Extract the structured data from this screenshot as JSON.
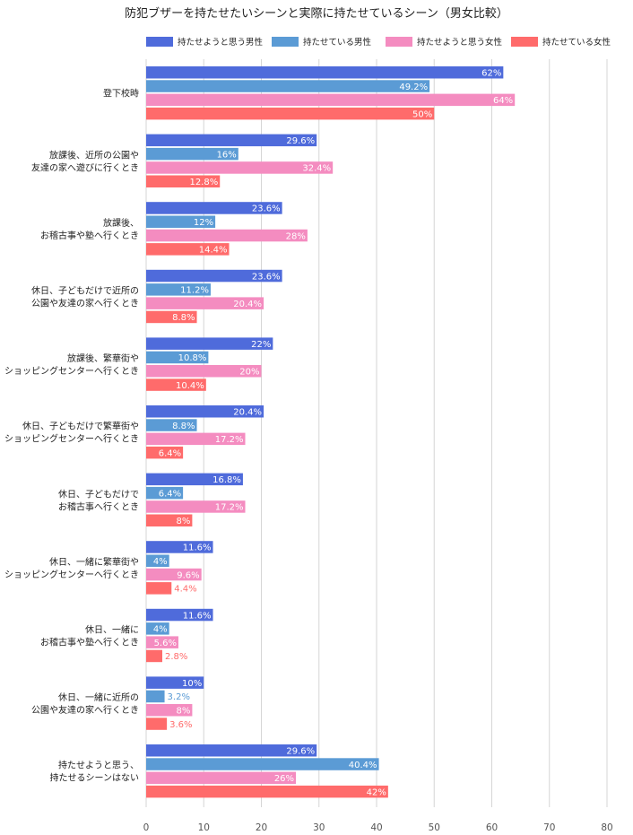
{
  "chart_data": {
    "type": "bar",
    "orientation": "horizontal",
    "title": "防犯ブザーを持たせたいシーンと実際に持たせているシーン（男女比較）",
    "legend_position": "top",
    "grid": true,
    "xlim": [
      0,
      80
    ],
    "x_ticks": [
      0,
      10,
      20,
      30,
      40,
      50,
      60,
      70,
      80
    ],
    "categories": [
      [
        "登下校時"
      ],
      [
        "放課後、近所の公園や",
        "友達の家へ遊びに行くとき"
      ],
      [
        "放課後、",
        "お稽古事や塾へ行くとき"
      ],
      [
        "休日、子どもだけで近所の",
        "公園や友達の家へ行くとき"
      ],
      [
        "放課後、繁華街や",
        "ショッピングセンターへ行くとき"
      ],
      [
        "休日、子どもだけで繁華街や",
        "ショッピングセンターへ行くとき"
      ],
      [
        "休日、子どもだけで",
        "お稽古事へ行くとき"
      ],
      [
        "休日、一緒に繁華街や",
        "ショッピングセンターへ行くとき"
      ],
      [
        "休日、一緒に",
        "お稽古事や塾へ行くとき"
      ],
      [
        "休日、一緒に近所の",
        "公園や友達の家へ行くとき"
      ],
      [
        "持たせようと思う、",
        "持たせるシーンはない"
      ]
    ],
    "series": [
      {
        "name": "持たせようと思う男性",
        "color": "#4f6bdb",
        "labels": [
          "62%",
          "29.6%",
          "23.6%",
          "23.6%",
          "22%",
          "20.4%",
          "16.8%",
          "11.6%",
          "11.6%",
          "10%",
          "29.6%"
        ],
        "values": [
          62,
          29.6,
          23.6,
          23.6,
          22,
          20.4,
          16.8,
          11.6,
          11.6,
          10,
          29.6
        ]
      },
      {
        "name": "持たせている男性",
        "color": "#5b9bd5",
        "labels": [
          "49.2%",
          "16%",
          "12%",
          "11.2%",
          "10.8%",
          "8.8%",
          "6.4%",
          "4%",
          "4%",
          "3.2%",
          "40.4%"
        ],
        "values": [
          49.2,
          16,
          12,
          11.2,
          10.8,
          8.8,
          6.4,
          4,
          4,
          3.2,
          40.4
        ]
      },
      {
        "name": "持たせようと思う女性",
        "color": "#f48cc0",
        "labels": [
          "64%",
          "32.4%",
          "28%",
          "20.4%",
          "20%",
          "17.2%",
          "17.2%",
          "9.6%",
          "5.6%",
          "8%",
          "26%"
        ],
        "values": [
          64,
          32.4,
          28,
          20.4,
          20,
          17.2,
          17.2,
          9.6,
          5.6,
          8,
          26
        ]
      },
      {
        "name": "持たせている女性",
        "color": "#ff6b6b",
        "labels": [
          "50%",
          "12.8%",
          "14.4%",
          "8.8%",
          "10.4%",
          "6.4%",
          "8%",
          "4.4%",
          "2.8%",
          "3.6%",
          "42%"
        ],
        "values": [
          50,
          12.8,
          14.4,
          8.8,
          10.4,
          6.4,
          8,
          4.4,
          2.8,
          3.6,
          42
        ]
      }
    ]
  }
}
